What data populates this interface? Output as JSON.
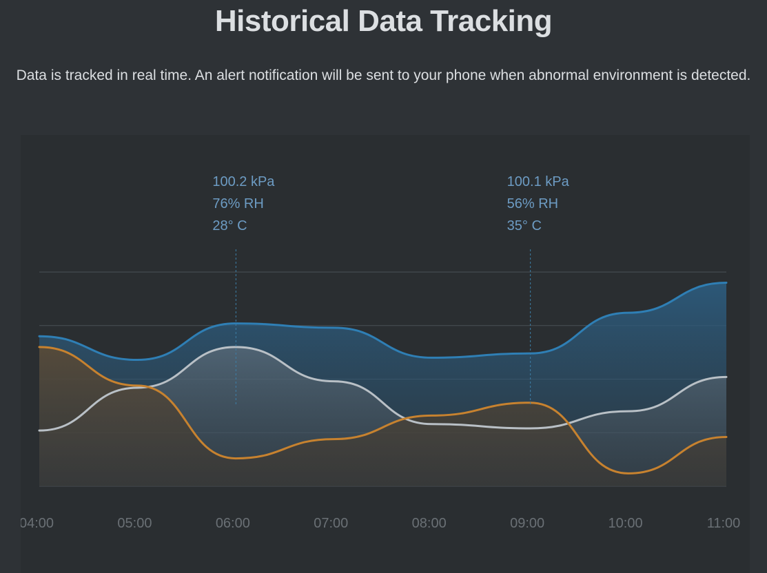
{
  "header": {
    "title": "Historical Data Tracking",
    "subtitle": "Data is tracked in real time. An alert notification will be sent to your phone when abnormal environment is detected."
  },
  "chart_data": {
    "type": "area",
    "title": "",
    "x": [
      "04:00",
      "05:00",
      "06:00",
      "07:00",
      "08:00",
      "09:00",
      "10:00",
      "11:00"
    ],
    "series": [
      {
        "color": "#2f7fb5",
        "values": [
          0.7,
          0.59,
          0.76,
          0.74,
          0.6,
          0.62,
          0.81,
          0.95
        ]
      },
      {
        "color": "#b9c0c6",
        "values": [
          0.26,
          0.46,
          0.65,
          0.49,
          0.29,
          0.27,
          0.35,
          0.51
        ]
      },
      {
        "color": "#c7822f",
        "values": [
          0.65,
          0.47,
          0.13,
          0.22,
          0.33,
          0.39,
          0.06,
          0.23
        ]
      }
    ],
    "annotations": [
      {
        "x": "06:00",
        "lines": [
          "100.2 kPa",
          "76% RH",
          "28° C"
        ]
      },
      {
        "x": "09:00",
        "lines": [
          "100.1 kPa",
          "56% RH",
          "35° C"
        ]
      }
    ],
    "grid": true
  }
}
